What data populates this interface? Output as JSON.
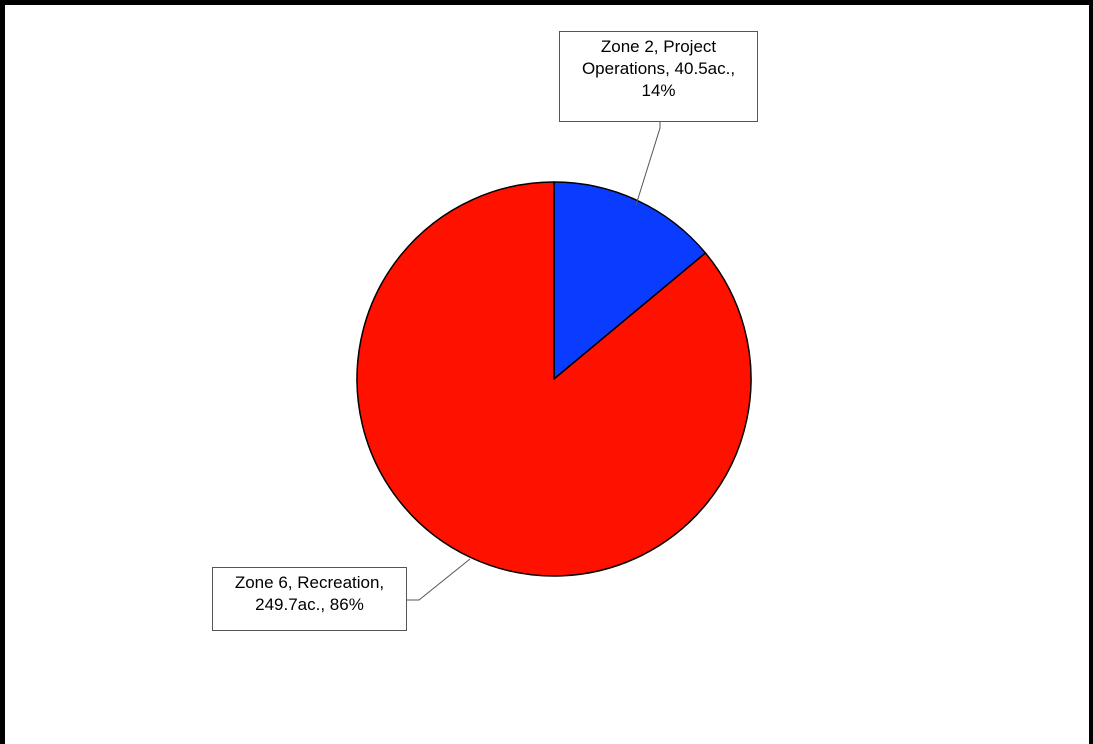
{
  "chart_data": {
    "type": "pie",
    "title": "",
    "start_angle_deg": 0,
    "direction": "clockwise",
    "slices": [
      {
        "category": "Zone 2, Project Operations",
        "value": 40.5,
        "unit": "ac.",
        "percent": 14,
        "color": "#0a3cff",
        "label_lines": [
          "Zone 2, Project",
          "Operations, 40.5ac.,",
          "14%"
        ]
      },
      {
        "category": "Zone 6, Recreation",
        "value": 249.7,
        "unit": "ac.",
        "percent": 86,
        "color": "#ff1100",
        "label_lines": [
          "Zone 6, Recreation,",
          "249.7ac., 86%"
        ]
      }
    ],
    "legend": "none",
    "grid": false
  }
}
